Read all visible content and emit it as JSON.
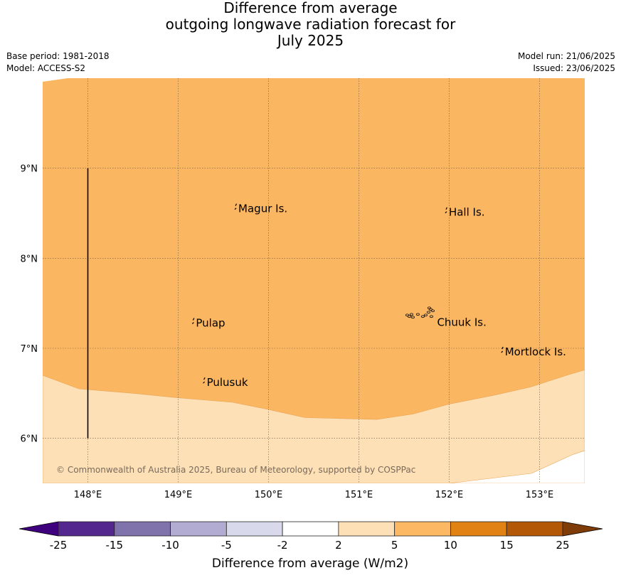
{
  "title": {
    "line1": "Difference from average",
    "line2": "outgoing longwave radiation forecast for",
    "line3": "July 2025"
  },
  "meta": {
    "base_period": "Base period: 1981-2018",
    "model": "Model: ACCESS-S2",
    "model_run": "Model run: 21/06/2025",
    "issued": "Issued: 23/06/2025"
  },
  "map": {
    "lon_range": [
      147.5,
      153.5
    ],
    "lat_range": [
      5.5,
      10.0
    ],
    "lon_ticks": [
      {
        "value": 148,
        "label": "148°E"
      },
      {
        "value": 149,
        "label": "149°E"
      },
      {
        "value": 150,
        "label": "150°E"
      },
      {
        "value": 151,
        "label": "151°E"
      },
      {
        "value": 152,
        "label": "152°E"
      },
      {
        "value": 153,
        "label": "153°E"
      }
    ],
    "lat_ticks": [
      {
        "value": 9,
        "label": "9°N"
      },
      {
        "value": 8,
        "label": "8°N"
      },
      {
        "value": 7,
        "label": "7°N"
      },
      {
        "value": 6,
        "label": "6°N"
      }
    ],
    "gridlines": true,
    "places": [
      {
        "name": "Magur Is.",
        "lon": 149.65,
        "lat": 8.55
      },
      {
        "name": "Hall Is.",
        "lon": 151.98,
        "lat": 8.51
      },
      {
        "name": "Pulap",
        "lon": 149.18,
        "lat": 7.28
      },
      {
        "name": "Chuuk Is.",
        "lon": 151.85,
        "lat": 7.29
      },
      {
        "name": "Mortlock Is.",
        "lon": 152.6,
        "lat": 6.96
      },
      {
        "name": "Pulusuk",
        "lon": 149.3,
        "lat": 6.62
      }
    ],
    "copyright": "© Commonwealth of Australia 2025, Bureau of Meteorology, supported by COSPPac",
    "bands": [
      {
        "range": "5 to 10",
        "color": "#fbb661"
      },
      {
        "range": "2 to 5",
        "color": "#fde0b6"
      }
    ],
    "band_boundary": [
      {
        "lon": 147.5,
        "lat": 6.7
      },
      {
        "lon": 147.9,
        "lat": 6.55
      },
      {
        "lon": 148.5,
        "lat": 6.5
      },
      {
        "lon": 149.0,
        "lat": 6.45
      },
      {
        "lon": 149.6,
        "lat": 6.4
      },
      {
        "lon": 150.0,
        "lat": 6.32
      },
      {
        "lon": 150.4,
        "lat": 6.23
      },
      {
        "lon": 150.8,
        "lat": 6.22
      },
      {
        "lon": 151.2,
        "lat": 6.21
      },
      {
        "lon": 151.6,
        "lat": 6.27
      },
      {
        "lon": 152.0,
        "lat": 6.38
      },
      {
        "lon": 152.5,
        "lat": 6.48
      },
      {
        "lon": 152.9,
        "lat": 6.57
      },
      {
        "lon": 153.3,
        "lat": 6.7
      },
      {
        "lon": 153.5,
        "lat": 6.76
      }
    ],
    "meridian_line": {
      "lon": 148.0,
      "lat_from": 6.0,
      "lat_to": 9.0
    }
  },
  "colorbar": {
    "label": "Difference from average (W/m2)",
    "ticks": [
      "-25",
      "-15",
      "-10",
      "-5",
      "-2",
      "2",
      "5",
      "10",
      "15",
      "25"
    ],
    "under_color": "#3f007d",
    "over_color": "#7f3b08",
    "colors": [
      "#54278f",
      "#8073ac",
      "#b2abd2",
      "#d8daeb",
      "#ffffff",
      "#fee0b6",
      "#fdb863",
      "#e08214",
      "#b35806"
    ]
  }
}
